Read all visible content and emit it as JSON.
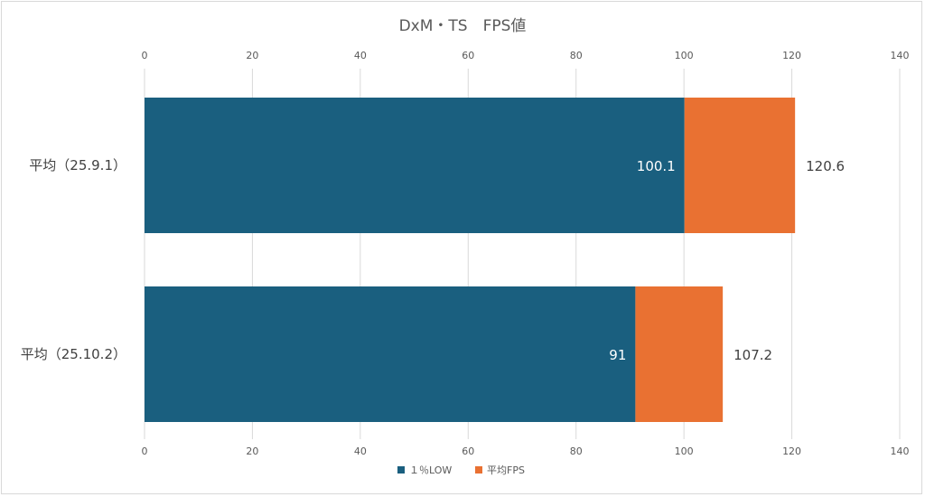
{
  "chart_data": {
    "type": "bar",
    "orientation": "horizontal",
    "title": "DxM・TS　FPS値",
    "categories": [
      "平均（25.9.1）",
      "平均（25.10.2）"
    ],
    "series": [
      {
        "name": "１％LOW",
        "values": [
          100.1,
          91
        ],
        "color": "#1a5f7f"
      },
      {
        "name": "平均FPS",
        "values": [
          120.6,
          107.2
        ],
        "color": "#e97132"
      }
    ],
    "xlim": [
      0,
      140
    ],
    "ticks": [
      0,
      20,
      40,
      60,
      80,
      100,
      120,
      140
    ],
    "tick_position": "top-and-bottom",
    "grid": true,
    "legend_position": "bottom"
  }
}
